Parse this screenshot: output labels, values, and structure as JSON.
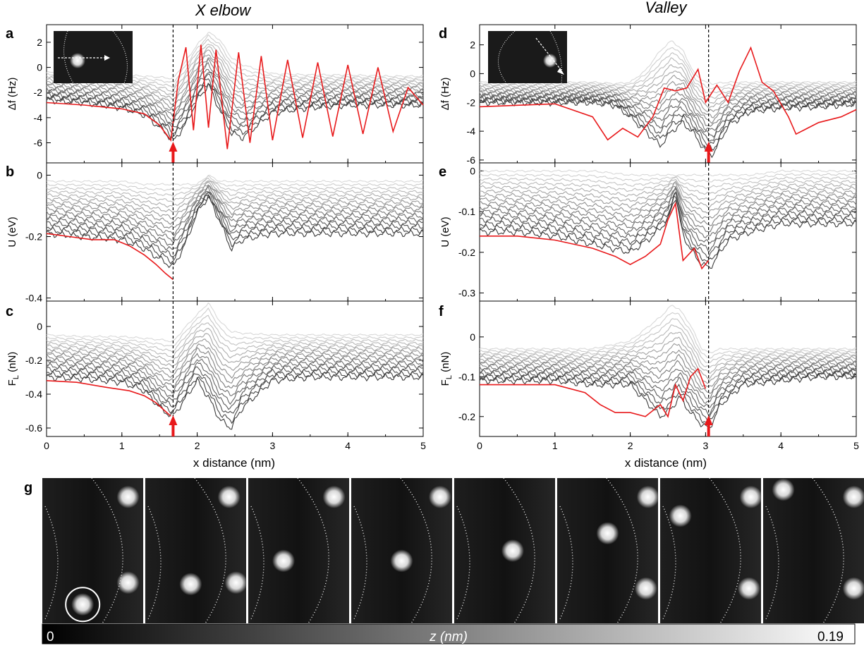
{
  "figure": {
    "column_titles": [
      "X elbow",
      "Valley"
    ],
    "panel_letters": [
      "a",
      "b",
      "c",
      "d",
      "e",
      "f",
      "g"
    ],
    "xlabel": "x distance (nm)",
    "colorbar": {
      "label": "z (nm)",
      "min_label": "0",
      "max_label": "0.19"
    }
  },
  "colors": {
    "highlight": "#e8191b",
    "dark_trace": "#3c3c3c",
    "light_trace": "#d8d8d8",
    "marker": "#e8191b"
  },
  "chart_data": [
    {
      "type": "line",
      "panel": "a",
      "column": "X elbow",
      "ylabel": "Δf (Hz)",
      "xlim": [
        0,
        5
      ],
      "ylim": [
        -7.6,
        3.4
      ],
      "yticks": [
        -6,
        -4,
        -2,
        0,
        2
      ],
      "xticks": [
        0,
        1,
        2,
        3,
        4,
        5
      ],
      "marker_x": 1.68,
      "arrow_x": 1.68,
      "n_gray_traces": 16,
      "highlight": {
        "x": [
          0,
          0.5,
          1.0,
          1.3,
          1.5,
          1.65,
          1.75,
          1.85,
          1.95,
          2.05,
          2.15,
          2.25,
          2.4,
          2.55,
          2.7,
          2.85,
          3.0,
          3.2,
          3.4,
          3.6,
          3.8,
          4.0,
          4.2,
          4.4,
          4.6,
          4.8,
          5.0
        ],
        "y": [
          -2.8,
          -3.0,
          -3.3,
          -3.7,
          -4.6,
          -5.8,
          -1.0,
          1.6,
          -5.0,
          1.8,
          -4.8,
          1.4,
          -6.5,
          1.2,
          -6.0,
          0.9,
          -5.8,
          0.6,
          -5.6,
          0.4,
          -5.5,
          0.2,
          -5.3,
          0.0,
          -5.1,
          -1.6,
          -3.0
        ]
      },
      "gray_bundle": {
        "x": [
          0,
          0.5,
          1.0,
          1.3,
          1.55,
          1.68,
          1.85,
          2.0,
          2.15,
          2.3,
          2.45,
          2.6,
          3.0,
          3.5,
          4.0,
          4.5,
          5.0
        ],
        "top": [
          -0.4,
          -0.5,
          -0.6,
          -0.7,
          -0.8,
          -0.9,
          0.5,
          1.8,
          2.8,
          2.2,
          0.8,
          0.2,
          -0.5,
          -0.6,
          -0.6,
          -0.7,
          -0.7
        ],
        "bottom": [
          -2.6,
          -2.8,
          -3.2,
          -3.8,
          -5.0,
          -5.9,
          -4.5,
          -2.6,
          -1.4,
          -3.4,
          -5.2,
          -5.6,
          -3.6,
          -3.2,
          -3.0,
          -3.0,
          -3.0
        ]
      }
    },
    {
      "type": "line",
      "panel": "b",
      "column": "X elbow",
      "ylabel": "U (eV)",
      "xlim": [
        0,
        5
      ],
      "ylim": [
        -0.41,
        0.04
      ],
      "yticks": [
        -0.4,
        -0.2,
        0
      ],
      "ytick_labels": [
        "-0.4",
        "-0.2",
        "0"
      ],
      "xticks": [
        0,
        1,
        2,
        3,
        4,
        5
      ],
      "marker_x": 1.68,
      "n_gray_traces": 16,
      "highlight": {
        "x": [
          0,
          0.3,
          0.6,
          0.9,
          1.1,
          1.3,
          1.45,
          1.58,
          1.68
        ],
        "y": [
          -0.19,
          -0.2,
          -0.21,
          -0.21,
          -0.23,
          -0.26,
          -0.29,
          -0.32,
          -0.34
        ]
      },
      "gray_bundle": {
        "x": [
          0,
          0.5,
          1.0,
          1.3,
          1.55,
          1.68,
          1.85,
          2.0,
          2.15,
          2.3,
          2.45,
          2.6,
          3.0,
          3.5,
          4.0,
          4.5,
          5.0
        ],
        "top": [
          -0.02,
          -0.02,
          -0.02,
          -0.03,
          -0.03,
          -0.03,
          -0.03,
          -0.03,
          0.0,
          -0.02,
          -0.02,
          -0.02,
          -0.02,
          -0.02,
          -0.02,
          -0.02,
          -0.02
        ],
        "bottom": [
          -0.19,
          -0.2,
          -0.21,
          -0.24,
          -0.28,
          -0.3,
          -0.22,
          -0.12,
          -0.07,
          -0.15,
          -0.24,
          -0.21,
          -0.19,
          -0.19,
          -0.19,
          -0.19,
          -0.19
        ]
      }
    },
    {
      "type": "line",
      "panel": "c",
      "column": "X elbow",
      "ylabel": "F_L (nN)",
      "xlim": [
        0,
        5
      ],
      "ylim": [
        -0.65,
        0.15
      ],
      "yticks": [
        -0.6,
        -0.4,
        -0.2,
        0
      ],
      "ytick_labels": [
        "-0.6",
        "-0.4",
        "-0.2",
        "0"
      ],
      "xticks": [
        0,
        1,
        2,
        3,
        4,
        5
      ],
      "xtick_labels": [
        "0",
        "1",
        "2",
        "3",
        "4",
        "5"
      ],
      "marker_x": 1.68,
      "arrow_x": 1.68,
      "n_gray_traces": 16,
      "highlight": {
        "x": [
          0,
          0.4,
          0.8,
          1.1,
          1.3,
          1.45,
          1.55,
          1.65
        ],
        "y": [
          -0.32,
          -0.33,
          -0.36,
          -0.38,
          -0.41,
          -0.45,
          -0.49,
          -0.53
        ]
      },
      "gray_bundle": {
        "x": [
          0,
          0.5,
          1.0,
          1.3,
          1.55,
          1.68,
          1.85,
          2.0,
          2.15,
          2.3,
          2.45,
          2.6,
          3.0,
          3.5,
          4.0,
          4.5,
          5.0
        ],
        "top": [
          -0.05,
          -0.06,
          -0.06,
          -0.07,
          -0.08,
          -0.09,
          0.0,
          0.07,
          0.14,
          0.03,
          -0.03,
          -0.04,
          -0.05,
          -0.05,
          -0.05,
          -0.05,
          -0.05
        ],
        "bottom": [
          -0.3,
          -0.31,
          -0.33,
          -0.38,
          -0.5,
          -0.53,
          -0.42,
          -0.32,
          -0.42,
          -0.55,
          -0.6,
          -0.48,
          -0.32,
          -0.3,
          -0.3,
          -0.3,
          -0.3
        ]
      }
    },
    {
      "type": "line",
      "panel": "d",
      "column": "Valley",
      "ylabel": "Δf (Hz)",
      "xlim": [
        0,
        5
      ],
      "ylim": [
        -6.2,
        3.4
      ],
      "yticks": [
        -6,
        -4,
        -2,
        0,
        2
      ],
      "xticks": [
        0,
        1,
        2,
        3,
        4,
        5
      ],
      "marker_x": 3.04,
      "arrow_x": 3.04,
      "n_gray_traces": 16,
      "highlight": {
        "x": [
          0,
          0.5,
          1.0,
          1.5,
          1.7,
          1.9,
          2.1,
          2.3,
          2.45,
          2.6,
          2.75,
          2.9,
          3.0,
          3.15,
          3.3,
          3.45,
          3.6,
          3.75,
          3.9,
          4.1,
          4.2,
          4.5,
          4.8,
          5.0
        ],
        "y": [
          -2.3,
          -2.2,
          -2.1,
          -3.0,
          -4.6,
          -3.8,
          -4.4,
          -3.0,
          -1.0,
          -1.2,
          -1.0,
          0.3,
          -2.0,
          -0.8,
          -2.0,
          0.2,
          1.8,
          -0.6,
          -1.2,
          -3.0,
          -4.2,
          -3.4,
          -3.0,
          -2.5
        ]
      },
      "gray_bundle": {
        "x": [
          0,
          0.5,
          1.0,
          1.5,
          1.8,
          2.0,
          2.2,
          2.4,
          2.55,
          2.7,
          2.85,
          3.0,
          3.1,
          3.3,
          3.6,
          4.0,
          4.5,
          5.0
        ],
        "top": [
          -0.6,
          -0.6,
          -0.6,
          -0.6,
          -0.7,
          -0.6,
          0.2,
          1.6,
          2.3,
          1.6,
          0.0,
          -0.6,
          -0.7,
          -0.6,
          -0.6,
          -0.6,
          -0.6,
          -0.6
        ],
        "bottom": [
          -2.0,
          -2.0,
          -2.0,
          -2.0,
          -2.2,
          -3.0,
          -4.0,
          -5.0,
          -4.0,
          -3.4,
          -4.2,
          -5.4,
          -5.6,
          -3.6,
          -2.6,
          -2.4,
          -2.3,
          -2.1
        ]
      }
    },
    {
      "type": "line",
      "panel": "e",
      "column": "Valley",
      "ylabel": "U (eV)",
      "xlim": [
        0,
        5
      ],
      "ylim": [
        -0.32,
        0.02
      ],
      "yticks": [
        -0.3,
        -0.2,
        -0.1,
        0
      ],
      "ytick_labels": [
        "-0.3",
        "-0.2",
        "-0.1",
        "0"
      ],
      "xticks": [
        0,
        1,
        2,
        3,
        4,
        5
      ],
      "marker_x": 3.04,
      "n_gray_traces": 16,
      "highlight": {
        "x": [
          0,
          0.5,
          1.0,
          1.5,
          1.8,
          2.0,
          2.2,
          2.4,
          2.5,
          2.6,
          2.7,
          2.85,
          2.95,
          3.04
        ],
        "y": [
          -0.16,
          -0.16,
          -0.17,
          -0.19,
          -0.21,
          -0.23,
          -0.21,
          -0.18,
          -0.12,
          -0.08,
          -0.22,
          -0.19,
          -0.24,
          -0.22
        ]
      },
      "gray_bundle": {
        "x": [
          0,
          0.5,
          1.0,
          1.5,
          2.0,
          2.3,
          2.5,
          2.6,
          2.7,
          2.9,
          3.05,
          3.3,
          3.6,
          4.0,
          4.5,
          5.0
        ],
        "top": [
          0.0,
          0.0,
          0.0,
          0.0,
          -0.01,
          -0.01,
          -0.01,
          -0.01,
          -0.01,
          -0.01,
          -0.01,
          -0.01,
          -0.01,
          0.0,
          0.0,
          0.0
        ],
        "bottom": [
          -0.15,
          -0.15,
          -0.16,
          -0.18,
          -0.2,
          -0.16,
          -0.12,
          -0.06,
          -0.16,
          -0.22,
          -0.24,
          -0.17,
          -0.15,
          -0.13,
          -0.13,
          -0.13
        ]
      }
    },
    {
      "type": "line",
      "panel": "f",
      "column": "Valley",
      "ylabel": "F_L (nN)",
      "xlim": [
        0,
        5
      ],
      "ylim": [
        -0.25,
        0.09
      ],
      "yticks": [
        -0.2,
        -0.1,
        0
      ],
      "ytick_labels": [
        "-0.2",
        "-0.1",
        "0"
      ],
      "xticks": [
        0,
        1,
        2,
        3,
        4,
        5
      ],
      "xtick_labels": [
        "0",
        "1",
        "2",
        "3",
        "4",
        "5"
      ],
      "marker_x": 3.04,
      "arrow_x": 3.04,
      "n_gray_traces": 16,
      "highlight": {
        "x": [
          0,
          0.5,
          1.0,
          1.4,
          1.6,
          1.8,
          2.0,
          2.2,
          2.4,
          2.5,
          2.6,
          2.7,
          2.8,
          2.9,
          3.0
        ],
        "y": [
          -0.12,
          -0.12,
          -0.12,
          -0.14,
          -0.17,
          -0.19,
          -0.19,
          -0.2,
          -0.17,
          -0.2,
          -0.12,
          -0.16,
          -0.1,
          -0.08,
          -0.13
        ]
      },
      "gray_bundle": {
        "x": [
          0,
          0.5,
          1.0,
          1.5,
          2.0,
          2.2,
          2.4,
          2.55,
          2.65,
          2.8,
          2.95,
          3.05,
          3.2,
          3.5,
          4.0,
          4.5,
          5.0
        ],
        "top": [
          -0.03,
          -0.03,
          -0.03,
          -0.03,
          -0.01,
          0.02,
          0.05,
          0.08,
          0.07,
          0.03,
          -0.03,
          -0.04,
          -0.03,
          -0.03,
          -0.03,
          -0.03,
          -0.03
        ],
        "bottom": [
          -0.11,
          -0.11,
          -0.11,
          -0.12,
          -0.12,
          -0.16,
          -0.2,
          -0.18,
          -0.15,
          -0.19,
          -0.22,
          -0.23,
          -0.17,
          -0.12,
          -0.11,
          -0.1,
          -0.1
        ]
      }
    }
  ],
  "image_strip": {
    "panel": "g",
    "frames": [
      {
        "molecules": [
          [
            0.85,
            0.13
          ],
          [
            0.4,
            0.87
          ],
          [
            0.85,
            0.72
          ]
        ],
        "circle_index": 1
      },
      {
        "molecules": [
          [
            0.83,
            0.13
          ],
          [
            0.45,
            0.73
          ],
          [
            0.9,
            0.72
          ]
        ]
      },
      {
        "molecules": [
          [
            0.85,
            0.13
          ],
          [
            0.35,
            0.57
          ]
        ]
      },
      {
        "molecules": [
          [
            0.88,
            0.13
          ],
          [
            0.5,
            0.57
          ]
        ]
      },
      {
        "molecules": [
          [
            0.58,
            0.5
          ]
        ]
      },
      {
        "molecules": [
          [
            0.9,
            0.13
          ],
          [
            0.5,
            0.38
          ],
          [
            0.88,
            0.76
          ]
        ]
      },
      {
        "molecules": [
          [
            0.9,
            0.13
          ],
          [
            0.2,
            0.26
          ],
          [
            0.88,
            0.76
          ]
        ]
      },
      {
        "molecules": [
          [
            0.2,
            0.08
          ],
          [
            0.9,
            0.13
          ],
          [
            0.9,
            0.76
          ]
        ]
      }
    ]
  }
}
